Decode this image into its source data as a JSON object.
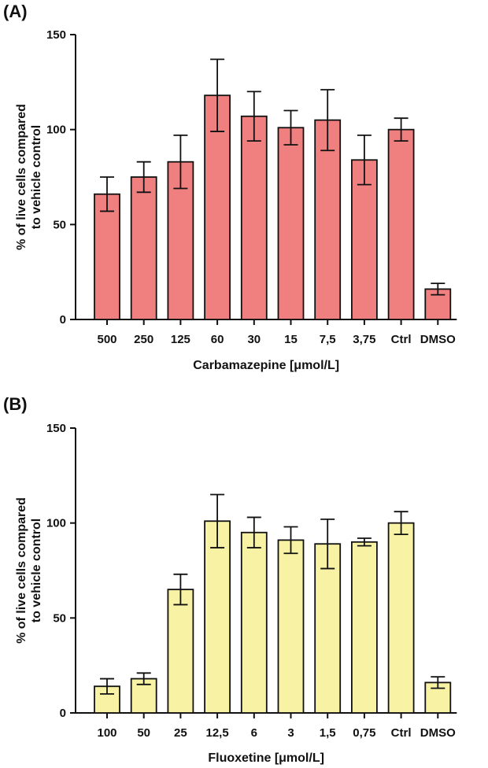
{
  "chart_data": [
    {
      "type": "bar",
      "panel_label": "(A)",
      "categories": [
        "500",
        "250",
        "125",
        "60",
        "30",
        "15",
        "7,5",
        "3,75",
        "Ctrl",
        "DMSO"
      ],
      "values": [
        66,
        75,
        83,
        118,
        107,
        101,
        105,
        84,
        100,
        16
      ],
      "errors": [
        9,
        8,
        14,
        19,
        13,
        9,
        16,
        13,
        6,
        3
      ],
      "xlabel": "Carbamazepine [μmol/L]",
      "ylabel_lines": [
        "% of live cells compared",
        "to vehicle control"
      ],
      "ylim": [
        0,
        150
      ],
      "yticks": [
        0,
        50,
        100,
        150
      ],
      "bar_color": "#f08080",
      "grid": false
    },
    {
      "type": "bar",
      "panel_label": "(B)",
      "categories": [
        "100",
        "50",
        "25",
        "12,5",
        "6",
        "3",
        "1,5",
        "0,75",
        "Ctrl",
        "DMSO"
      ],
      "values": [
        14,
        18,
        65,
        101,
        95,
        91,
        89,
        90,
        100,
        16
      ],
      "errors": [
        4,
        3,
        8,
        14,
        8,
        7,
        13,
        2,
        6,
        3
      ],
      "xlabel": "Fluoxetine [μmol/L]",
      "ylabel_lines": [
        "% of live cells compared",
        "to vehicle control"
      ],
      "ylim": [
        0,
        150
      ],
      "yticks": [
        0,
        50,
        100,
        150
      ],
      "bar_color": "#f7f2a4",
      "grid": false
    }
  ]
}
